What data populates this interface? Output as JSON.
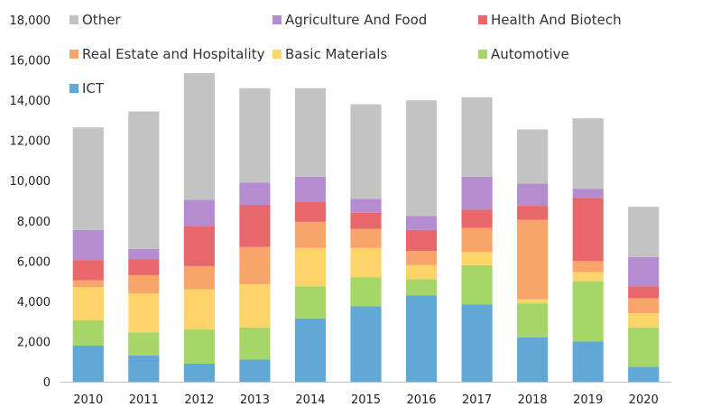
{
  "chart_data": {
    "type": "bar",
    "stacked": true,
    "title": "",
    "xlabel": "",
    "ylabel": "",
    "ylim": [
      0,
      18000
    ],
    "yticks": [
      0,
      2000,
      4000,
      6000,
      8000,
      10000,
      12000,
      14000,
      16000,
      18000
    ],
    "ytick_labels": [
      "0",
      "2,000",
      "4,000",
      "6,000",
      "8,000",
      "10,000",
      "12,000",
      "14,000",
      "16,000",
      "18,000"
    ],
    "grid": false,
    "legend_position": "top",
    "categories": [
      "2010",
      "2011",
      "2012",
      "2013",
      "2014",
      "2015",
      "2016",
      "2017",
      "2018",
      "2019",
      "2020"
    ],
    "series": [
      {
        "name": "ICT",
        "color": "#62a8d6",
        "values": [
          1800,
          1300,
          900,
          1100,
          3150,
          3750,
          4300,
          3850,
          2200,
          2000,
          750
        ]
      },
      {
        "name": "Automotive",
        "color": "#a6d668",
        "values": [
          1250,
          1150,
          1700,
          1600,
          1600,
          1450,
          800,
          1950,
          1700,
          3000,
          1950
        ]
      },
      {
        "name": "Basic Materials",
        "color": "#fdd46a",
        "values": [
          1650,
          1950,
          2000,
          2150,
          1900,
          1450,
          700,
          650,
          200,
          450,
          700
        ]
      },
      {
        "name": "Real Estate and Hospitality",
        "color": "#f8a56c",
        "values": [
          350,
          900,
          1150,
          1850,
          1300,
          950,
          700,
          1200,
          3950,
          550,
          750
        ]
      },
      {
        "name": "Health And Biotech",
        "color": "#e8676a",
        "values": [
          1000,
          800,
          2000,
          2100,
          1000,
          800,
          1050,
          900,
          700,
          3150,
          600
        ]
      },
      {
        "name": "Agriculture And Food",
        "color": "#b58cd0",
        "values": [
          1500,
          500,
          1300,
          1100,
          1250,
          700,
          700,
          1650,
          1100,
          450,
          1450
        ]
      },
      {
        "name": "Other",
        "color": "#c3c3c3",
        "values": [
          5100,
          6850,
          6300,
          4700,
          4400,
          4700,
          5750,
          3950,
          2700,
          3500,
          2500
        ]
      }
    ],
    "legend_order": [
      "Other",
      "Agriculture And Food",
      "Health And Biotech",
      "Real Estate and Hospitality",
      "Basic Materials",
      "Automotive",
      "ICT"
    ]
  }
}
